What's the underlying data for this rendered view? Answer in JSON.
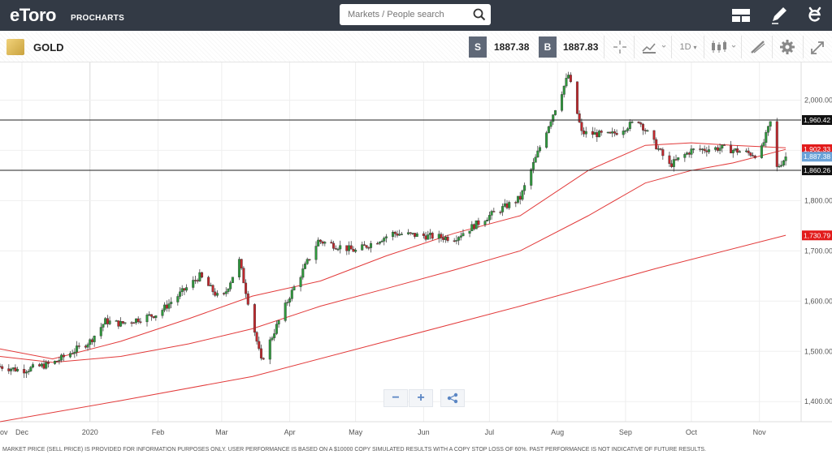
{
  "header": {
    "logo_text": "eToro",
    "logo_sub": "PROCHARTS",
    "search_placeholder": "Markets / People search"
  },
  "instrument": {
    "symbol": "GOLD",
    "sell_label": "S",
    "sell_price": "1887.38",
    "buy_label": "B",
    "buy_price": "1887.83",
    "timeframe": "1D"
  },
  "chart_data": {
    "type": "line",
    "title": "",
    "xlabel": "",
    "ylabel": "",
    "x_ticks": [
      "ov",
      "Dec",
      "2020",
      "Feb",
      "Mar",
      "Apr",
      "May",
      "Jun",
      "Jul",
      "Aug",
      "Sep",
      "Oct",
      "Nov"
    ],
    "y_ticks": [
      "2,000.00",
      "1,900.00",
      "1,800.00",
      "1,700.00",
      "1,600.00",
      "1,500.00",
      "1,400.00"
    ],
    "ylim": [
      1360,
      2075
    ],
    "grid": true,
    "series": [
      {
        "name": "",
        "kind": "candles-approx-close",
        "x": [
          "2019-11-21",
          "2019-12-01",
          "2019-12-15",
          "2020-01-01",
          "2020-01-08",
          "2020-01-15",
          "2020-02-01",
          "2020-02-20",
          "2020-03-01",
          "2020-03-09",
          "2020-03-19",
          "2020-04-01",
          "2020-04-14",
          "2020-05-01",
          "2020-05-18",
          "2020-06-01",
          "2020-06-15",
          "2020-07-01",
          "2020-07-15",
          "2020-07-27",
          "2020-08-06",
          "2020-08-12",
          "2020-08-25",
          "2020-09-07",
          "2020-09-21",
          "2020-10-01",
          "2020-10-15",
          "2020-11-01",
          "2020-11-06",
          "2020-11-09",
          "2020-11-13"
        ],
        "values": [
          1470,
          1462,
          1476,
          1520,
          1560,
          1555,
          1575,
          1650,
          1600,
          1680,
          1480,
          1610,
          1720,
          1700,
          1735,
          1730,
          1725,
          1770,
          1805,
          1940,
          2050,
          1935,
          1930,
          1960,
          1870,
          1900,
          1905,
          1890,
          1955,
          1865,
          1887
        ]
      },
      {
        "name": "",
        "kind": "sma-short",
        "x": [
          "2019-11-21",
          "2019-12-15",
          "2020-01-15",
          "2020-02-15",
          "2020-03-15",
          "2020-04-15",
          "2020-05-15",
          "2020-06-15",
          "2020-07-15",
          "2020-08-15",
          "2020-09-10",
          "2020-10-01",
          "2020-10-20",
          "2020-11-13"
        ],
        "values": [
          1505,
          1485,
          1520,
          1565,
          1610,
          1640,
          1690,
          1735,
          1770,
          1860,
          1910,
          1915,
          1910,
          1905
        ]
      },
      {
        "name": "",
        "kind": "sma-medium",
        "x": [
          "2019-11-21",
          "2019-12-15",
          "2020-01-15",
          "2020-02-15",
          "2020-03-15",
          "2020-04-15",
          "2020-05-15",
          "2020-06-15",
          "2020-07-15",
          "2020-08-15",
          "2020-09-10",
          "2020-10-01",
          "2020-10-20",
          "2020-11-13"
        ],
        "values": [
          1490,
          1478,
          1490,
          1515,
          1545,
          1590,
          1625,
          1662,
          1700,
          1770,
          1835,
          1860,
          1875,
          1902
        ]
      },
      {
        "name": "",
        "kind": "sma-long",
        "x": [
          "2019-11-21",
          "2020-01-15",
          "2020-03-15",
          "2020-05-15",
          "2020-07-15",
          "2020-09-15",
          "2020-11-13"
        ],
        "values": [
          1360,
          1402,
          1450,
          1520,
          1590,
          1665,
          1731
        ]
      }
    ],
    "horizontal_lines": [
      {
        "value": 1960.42,
        "label": "1,960.42"
      },
      {
        "value": 1860.26,
        "label": "1,860.26"
      }
    ],
    "price_labels": [
      {
        "label": "1,902.33",
        "color": "#e21b1b"
      },
      {
        "label": "1,887.38",
        "color": "#6aa2d8"
      },
      {
        "label": "1,730.79",
        "color": "#e21b1b"
      }
    ]
  },
  "footer": {
    "disclaimer": "MARKET PRICE (SELL PRICE) IS PROVIDED FOR INFORMATION PURPOSES ONLY. USER PERFORMANCE IS BASED ON A $10000 COPY SIMULATED RESULTS WITH A COPY STOP LOSS OF 60%. PAST PERFORMANCE IS NOT INDICATIVE OF FUTURE RESULTS."
  },
  "colors": {
    "header_bg": "#333a45",
    "candle_up": "#2f9a3d",
    "candle_down": "#c0282d",
    "ma_red": "#e23a3a",
    "accent_blue": "#5b86c4"
  },
  "icons": [
    "search-icon",
    "layout-icon",
    "pencil-icon",
    "etoro-e-icon",
    "crosshair-icon",
    "chart-type-icon",
    "candles-icon",
    "drawing-icon",
    "gear-icon",
    "fullscreen-icon",
    "minus-icon",
    "plus-icon",
    "share-icon"
  ]
}
